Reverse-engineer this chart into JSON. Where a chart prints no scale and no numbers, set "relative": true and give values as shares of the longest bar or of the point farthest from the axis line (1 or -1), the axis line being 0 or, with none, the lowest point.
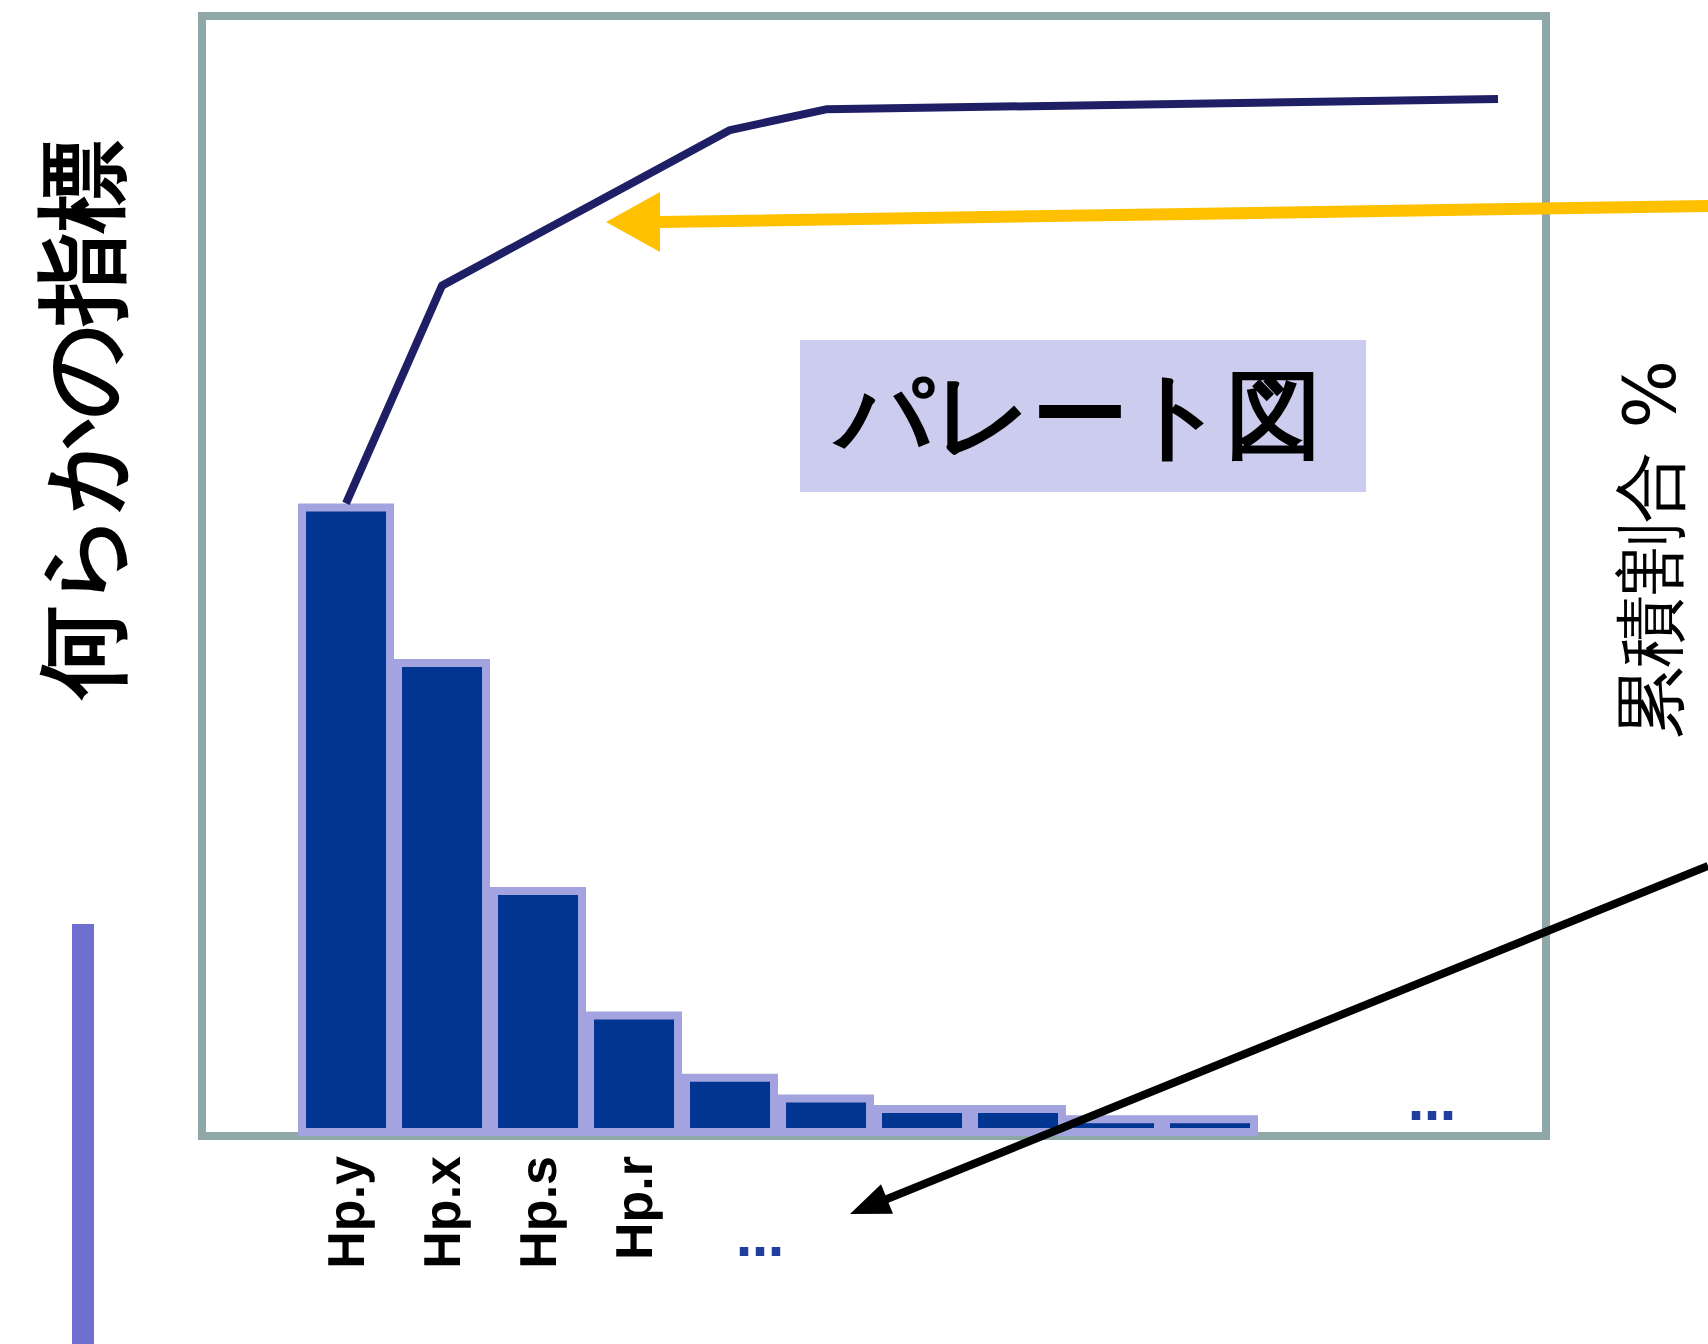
{
  "chart_data": {
    "type": "bar",
    "title": "パレート図",
    "ylabel": "何らかの指標",
    "y2label": "累積割合 %",
    "relative": true,
    "grid": false,
    "categories": [
      null,
      "Hp.y",
      "Hp.x",
      "Hp.s",
      "Hp.r",
      null,
      null,
      null,
      null,
      null,
      null,
      null,
      null,
      null
    ],
    "annotations": [
      "…",
      "…"
    ],
    "series": [
      {
        "color": "#003591",
        "values": [
          null,
          0.61,
          0.46,
          0.24,
          0.12,
          0.06,
          0.04,
          0.03,
          0.03,
          0.02,
          0.02,
          null,
          null,
          null
        ]
      },
      {
        "type": "line",
        "color": "#1f1f66",
        "marker": "none",
        "line_style": "solid",
        "values": [
          null,
          0.61,
          0.82,
          null,
          0.92,
          0.97,
          0.99,
          null,
          null,
          null,
          null,
          null,
          null,
          1
        ]
      }
    ]
  }
}
